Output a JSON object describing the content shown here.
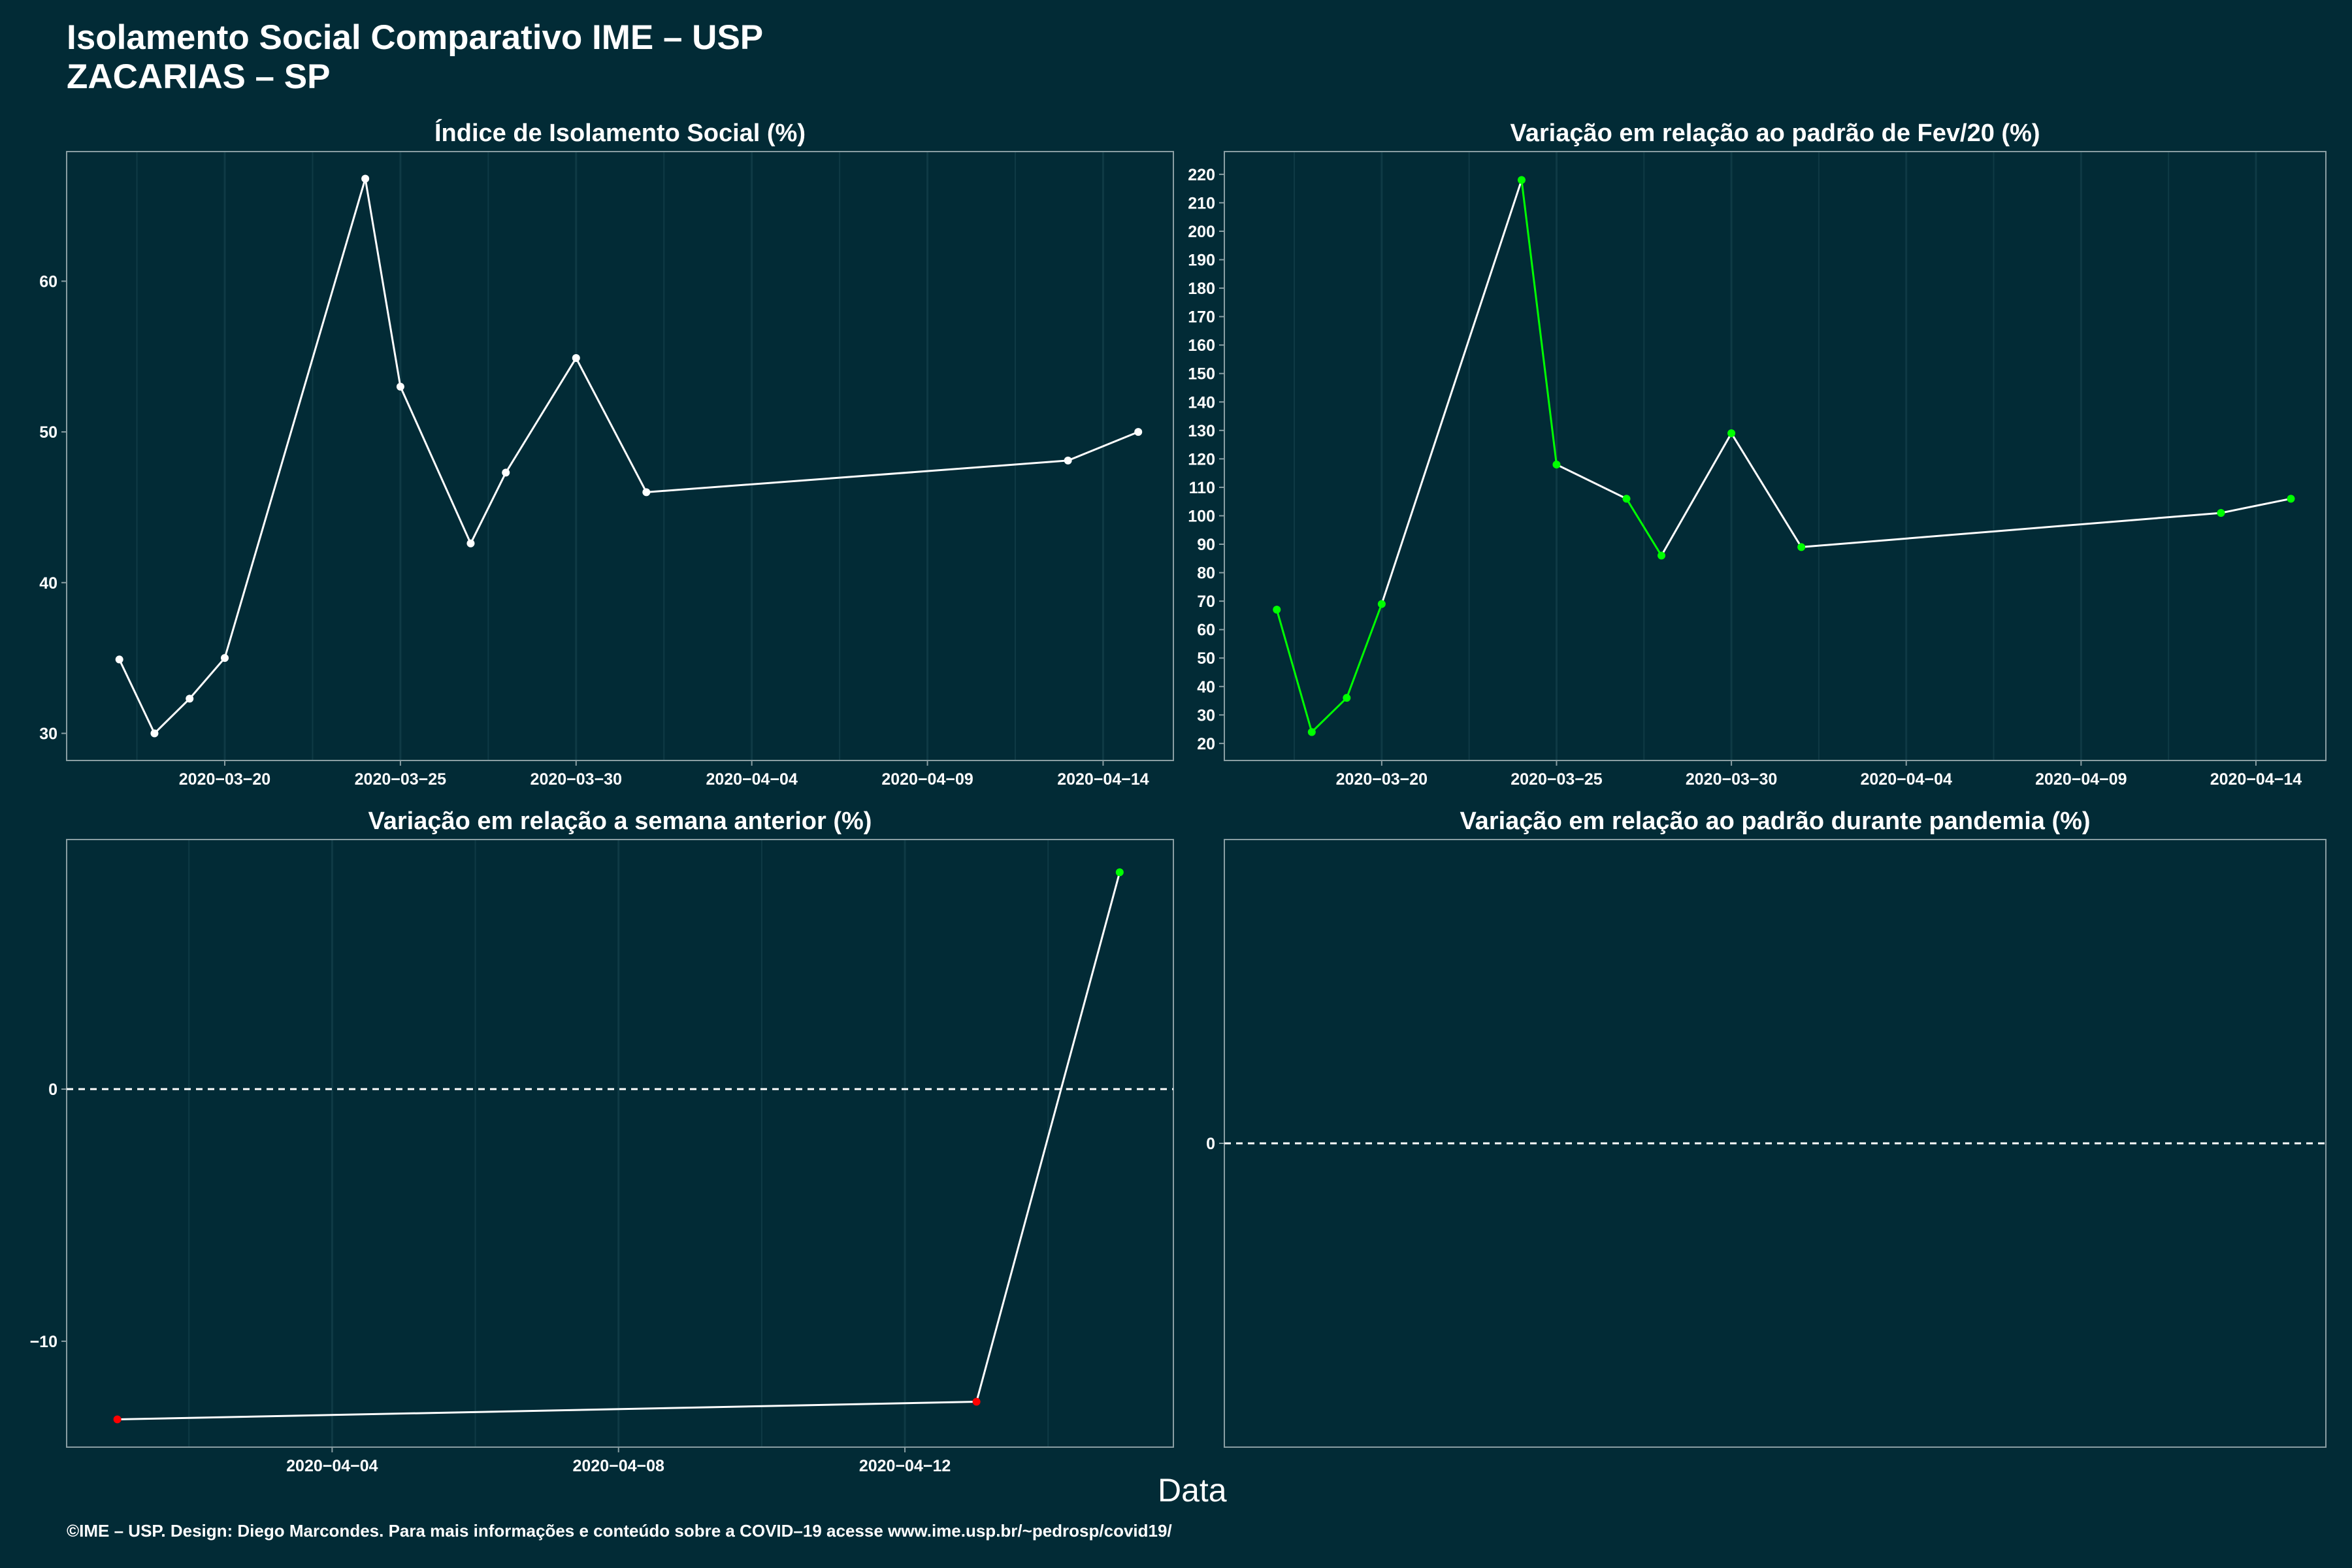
{
  "header": {
    "title_line1": "Isolamento Social Comparativo IME – USP",
    "title_line2": "ZACARIAS – SP"
  },
  "x_axis_label": "Data",
  "caption": "©IME – USP. Design: Diego Marcondes. Para mais informações e conteúdo sobre a COVID–19 acesse www.ime.usp.br/~pedrosp/covid19/",
  "colors": {
    "background": "#022b36",
    "line": "#ffffff",
    "positive": "#00ff00",
    "negative": "#ff0000",
    "border": "#8a9ea3",
    "grid": "#0f3a45"
  },
  "chart_data": [
    {
      "id": "indice",
      "type": "line",
      "title": "Índice de Isolamento Social (%)",
      "x": [
        "2020-03-17",
        "2020-03-18",
        "2020-03-19",
        "2020-03-20",
        "2020-03-24",
        "2020-03-25",
        "2020-03-27",
        "2020-03-28",
        "2020-03-30",
        "2020-04-01",
        "2020-04-13",
        "2020-04-15"
      ],
      "values": [
        34.9,
        30.0,
        32.3,
        35.0,
        66.8,
        53.0,
        42.6,
        47.3,
        54.9,
        46.0,
        48.1,
        50.0
      ],
      "point_color": "#ffffff",
      "xticks": [
        "2020-03-20",
        "2020-03-25",
        "2020-03-30",
        "2020-04-04",
        "2020-04-09",
        "2020-04-14"
      ],
      "yticks": [
        30,
        40,
        50,
        60
      ],
      "xlim": [
        "2020-03-15T12:00",
        "2020-04-16T00:00"
      ],
      "ylim": [
        28.2,
        68.6
      ]
    },
    {
      "id": "fev",
      "type": "line",
      "title": "Variação em relação ao padrão de Fev/20 (%)",
      "x": [
        "2020-03-17",
        "2020-03-18",
        "2020-03-19",
        "2020-03-20",
        "2020-03-24",
        "2020-03-25",
        "2020-03-27",
        "2020-03-28",
        "2020-03-30",
        "2020-04-01",
        "2020-04-13",
        "2020-04-15"
      ],
      "values": [
        67,
        24,
        36,
        69,
        218,
        118,
        106,
        86,
        129,
        89,
        101,
        106
      ],
      "point_color": "#00ff00",
      "green_segments_after_points": [
        0,
        1,
        2,
        4,
        6
      ],
      "xticks": [
        "2020-03-20",
        "2020-03-25",
        "2020-03-30",
        "2020-04-04",
        "2020-04-09",
        "2020-04-14"
      ],
      "yticks": [
        20,
        30,
        40,
        50,
        60,
        70,
        80,
        90,
        100,
        110,
        120,
        130,
        140,
        150,
        160,
        170,
        180,
        190,
        200,
        210,
        220
      ],
      "xlim": [
        "2020-03-15T12:00",
        "2020-04-16T00:00"
      ],
      "ylim": [
        14,
        228
      ]
    },
    {
      "id": "semana",
      "type": "line",
      "title": "Variação em relação a semana anterior (%)",
      "x": [
        "2020-04-01",
        "2020-04-13",
        "2020-04-15"
      ],
      "values": [
        -13.1,
        -12.4,
        8.6
      ],
      "point_colors": [
        "#ff0000",
        "#ff0000",
        "#00ff00"
      ],
      "reference_line": 0,
      "xticks": [
        "2020-04-04",
        "2020-04-08",
        "2020-04-12"
      ],
      "yticks": [
        -10,
        0
      ],
      "xlim": [
        "2020-03-31T07:00",
        "2020-04-15T18:00"
      ],
      "ylim": [
        -14.2,
        9.9
      ]
    },
    {
      "id": "pandemia",
      "type": "line",
      "title": "Variação em relação ao padrão durante pandemia (%)",
      "x": [],
      "values": [],
      "reference_line": 0,
      "xticks": [],
      "yticks": [
        0
      ],
      "ylim": [
        -1,
        1
      ]
    }
  ]
}
